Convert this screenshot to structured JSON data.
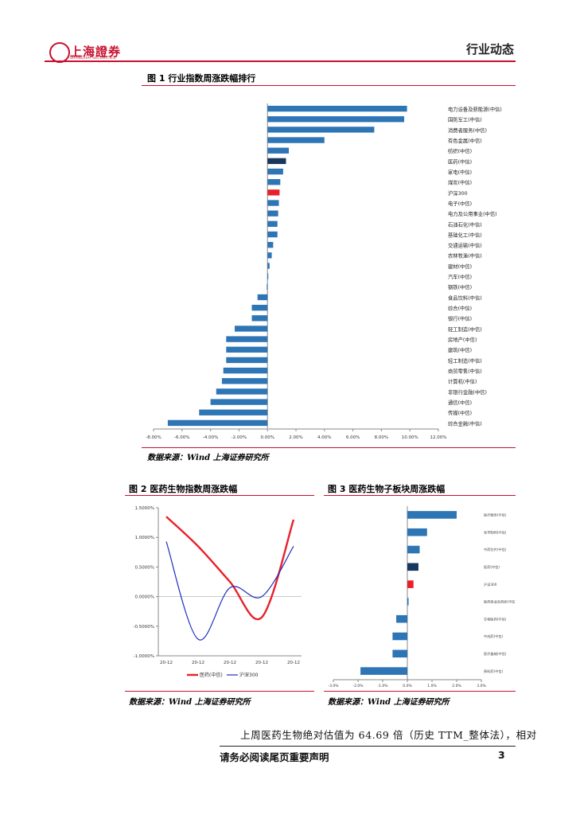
{
  "header": {
    "logo_text": "上海證券",
    "logo_sub": "SHANGHAI SECURITIES",
    "section": "行业动态"
  },
  "figure1": {
    "title": "图 1 行业指数周涨跌幅排行",
    "source": "数据来源：Wind 上海证券研究所",
    "chart_data": {
      "type": "bar",
      "orientation": "horizontal",
      "categories": [
        "电力设备及新能源(中信)",
        "国防军工(中信)",
        "消费者服务(中信)",
        "有色金属(中信)",
        "纺织(中信)",
        "医药(中信)",
        "家电(中信)",
        "煤炭(中信)",
        "沪深300",
        "电子(中信)",
        "电力及公用事业(中信)",
        "石油石化(中信)",
        "基础化工(中信)",
        "交通运输(中信)",
        "农林牧渔(中信)",
        "建材(中信)",
        "汽车(中信)",
        "钢铁(中信)",
        "食品饮料(中信)",
        "综合(中信)",
        "银行(中信)",
        "轻工制造(中信)",
        "房地产(中信)",
        "建筑(中信)",
        "轻工制造(中信)",
        "商贸零售(中信)",
        "计算机(中信)",
        "非银行金融(中信)",
        "通信(中信)",
        "传媒(中信)",
        "综合金融(中信)"
      ],
      "values": [
        9.8,
        9.6,
        7.5,
        4.0,
        1.5,
        1.3,
        1.1,
        0.9,
        0.85,
        0.8,
        0.75,
        0.7,
        0.7,
        0.4,
        0.3,
        0.15,
        0.05,
        -0.05,
        -0.7,
        -1.1,
        -1.1,
        -2.3,
        -2.9,
        -2.9,
        -2.9,
        -3.1,
        -3.2,
        -3.6,
        -4.0,
        -4.8,
        -7.0
      ],
      "highlight": {
        "医药(中信)": "#17375e",
        "沪深300": "#e8202a"
      },
      "bar_color": "#2e75b6",
      "xlim": [
        -8,
        12
      ],
      "xticks": [
        "-8.00%",
        "-6.00%",
        "-4.00%",
        "-2.00%",
        "0.00%",
        "2.00%",
        "4.00%",
        "6.00%",
        "8.00%",
        "10.00%",
        "12.00%"
      ]
    }
  },
  "figure2": {
    "title": "图 2 医药生物指数周涨跌幅",
    "source": "数据来源：Wind 上海证券研究所",
    "chart_data": {
      "type": "line",
      "x": [
        "20-12",
        "20-12",
        "20-12",
        "20-12",
        "20-12"
      ],
      "series": [
        {
          "name": "医药(中信)",
          "color": "#e8202a",
          "values": [
            1.35,
            0.85,
            0.25,
            -0.35,
            1.3
          ]
        },
        {
          "name": "沪深300",
          "color": "#1f2fbf",
          "values": [
            0.93,
            -0.72,
            0.15,
            0.0,
            0.85
          ]
        }
      ],
      "yticks": [
        "1.5000%",
        "1.0000%",
        "0.5000%",
        "0.0000%",
        "-0.5000%",
        "-1.0000%"
      ],
      "ylim": [
        -1.0,
        1.5
      ]
    }
  },
  "figure3": {
    "title": "图 3 医药生物子板块周涨跌幅",
    "source": "数据来源：Wind 上海证券研究所",
    "chart_data": {
      "type": "bar",
      "orientation": "horizontal",
      "categories": [
        "医疗服务(中信)",
        "化学制剂(中信)",
        "中药饮片(中信)",
        "医药(中信)",
        "沪深300",
        "医药商业及药房(中信)",
        "生物医药(中信)",
        "中成药(中信)",
        "医疗器械(中信)",
        "原料药(中信)"
      ],
      "values": [
        2.0,
        0.8,
        0.5,
        0.45,
        0.25,
        0.05,
        -0.45,
        -0.6,
        -0.6,
        -1.9
      ],
      "highlight": {
        "医药(中信)": "#17375e",
        "沪深300": "#e8202a"
      },
      "bar_color": "#2e75b6",
      "xlim": [
        -3,
        3
      ],
      "xticks": [
        "-3.0%",
        "-2.0%",
        "-1.0%",
        "0.0%",
        "1.0%",
        "2.0%",
        "3.0%"
      ]
    }
  },
  "body": {
    "text": "上周医药生物绝对估值为 64.69 倍（历史 TTM_整体法），相对"
  },
  "footer": {
    "disclaimer": "请务必阅读尾页重要声明",
    "page": "3"
  }
}
